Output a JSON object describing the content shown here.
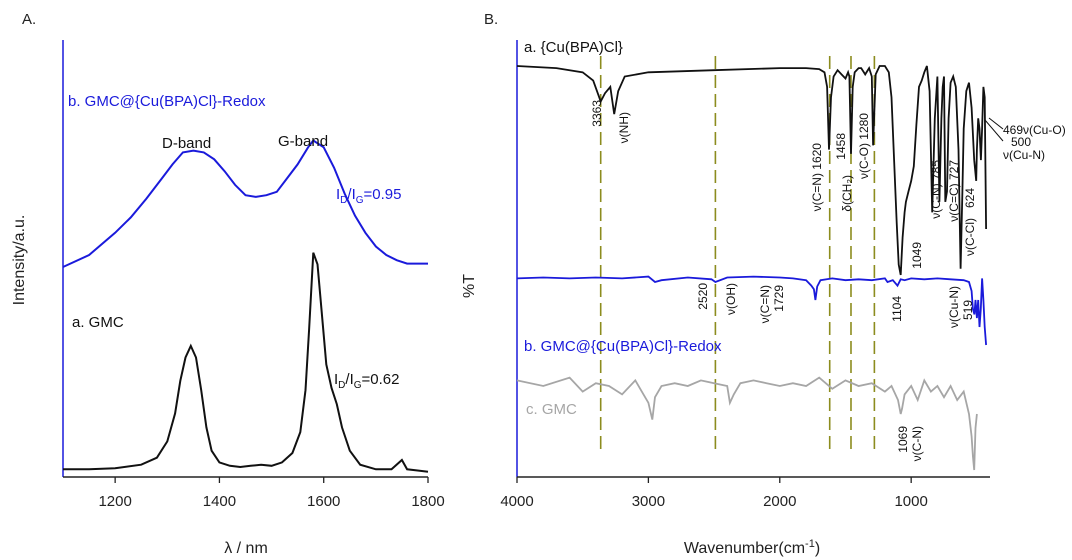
{
  "colors": {
    "black": "#111111",
    "blue": "#1a1adb",
    "gray": "#a6a6a6",
    "guide": "#8c8c1e"
  },
  "chart_data": [
    {
      "type": "line",
      "panel_label": "A.",
      "xlabel": "λ / nm",
      "ylabel": "Intensity/a.u.",
      "xlim": [
        1100,
        1800
      ],
      "xticks": [
        "1200",
        "1400",
        "1600",
        "1800"
      ],
      "ratio_b": {
        "prefix": "I",
        "sub1": "D",
        "mid": "/I",
        "sub2": "G",
        "value": "=0.95"
      },
      "ratio_a": {
        "prefix": "I",
        "sub1": "D",
        "mid": "/I",
        "sub2": "G",
        "value": "=0.62"
      },
      "band_labels": [
        "D-band",
        "G-band"
      ],
      "series": [
        {
          "name": "a. GMC",
          "color": "#111111",
          "x": [
            1100,
            1150,
            1200,
            1250,
            1280,
            1300,
            1315,
            1325,
            1335,
            1345,
            1355,
            1365,
            1375,
            1385,
            1400,
            1420,
            1440,
            1460,
            1480,
            1500,
            1520,
            1540,
            1555,
            1565,
            1572,
            1580,
            1588,
            1596,
            1605,
            1615,
            1625,
            1635,
            1650,
            1670,
            1700,
            1730,
            1750,
            1760,
            1780,
            1800
          ],
          "y": [
            0.02,
            0.02,
            0.025,
            0.04,
            0.07,
            0.14,
            0.26,
            0.4,
            0.5,
            0.55,
            0.5,
            0.36,
            0.2,
            0.1,
            0.05,
            0.035,
            0.03,
            0.035,
            0.04,
            0.035,
            0.05,
            0.09,
            0.18,
            0.36,
            0.62,
            0.95,
            0.9,
            0.7,
            0.47,
            0.37,
            0.3,
            0.2,
            0.1,
            0.04,
            0.02,
            0.02,
            0.06,
            0.02,
            0.015,
            0.01
          ]
        },
        {
          "name": "b. GMC@{Cu(BPA)Cl}-Redox",
          "color": "#1a1adb",
          "x": [
            1100,
            1150,
            1200,
            1230,
            1260,
            1290,
            1310,
            1330,
            1350,
            1370,
            1390,
            1410,
            1430,
            1450,
            1470,
            1490,
            1510,
            1530,
            1550,
            1570,
            1580,
            1590,
            1600,
            1620,
            1640,
            1660,
            1680,
            1700,
            1720,
            1740,
            1760,
            1800
          ],
          "y": [
            0.0,
            0.07,
            0.2,
            0.29,
            0.4,
            0.52,
            0.6,
            0.67,
            0.68,
            0.67,
            0.63,
            0.56,
            0.48,
            0.42,
            0.41,
            0.42,
            0.44,
            0.52,
            0.6,
            0.7,
            0.74,
            0.72,
            0.7,
            0.58,
            0.43,
            0.3,
            0.2,
            0.12,
            0.07,
            0.04,
            0.02,
            0.02
          ]
        }
      ]
    },
    {
      "type": "line",
      "panel_label": "B.",
      "xlabel": "Wavenumber(cm",
      "xlabel_sup": "-1",
      "xlabel_close": ")",
      "ylabel": "%T",
      "xlim": [
        4000,
        400
      ],
      "xticks": [
        "4000",
        "3000",
        "2000",
        "1000"
      ],
      "guide_lines_x": [
        3363,
        2490,
        1620,
        1458,
        1280
      ],
      "annotations": [
        "3363",
        "ν(NH)",
        "ν(C=N) 1620",
        "1458",
        "δ(CH₂)",
        "ν(C-O) 1280",
        "1104",
        "1049",
        "ν(C-N) 785",
        "ν(C=C) 727",
        "624",
        "ν(C-Cl)",
        "469ν(Cu-O)",
        "500",
        "ν(Cu-N)",
        "2520",
        "ν(OH)",
        "ν(C=N)",
        "1729",
        "ν(Cu-N)",
        "519",
        "1069",
        "ν(C-N)"
      ],
      "series": [
        {
          "name": "a. {Cu(BPA)Cl}",
          "color": "#111111",
          "x": [
            4000,
            3700,
            3500,
            3420,
            3380,
            3363,
            3330,
            3290,
            3260,
            3230,
            3180,
            3000,
            2500,
            2000,
            1800,
            1700,
            1660,
            1640,
            1625,
            1610,
            1590,
            1560,
            1530,
            1500,
            1480,
            1470,
            1458,
            1445,
            1430,
            1400,
            1380,
            1350,
            1320,
            1300,
            1290,
            1270,
            1240,
            1200,
            1170,
            1150,
            1130,
            1110,
            1095,
            1080,
            1065,
            1050,
            1040,
            1020,
            1000,
            980,
            960,
            940,
            920,
            900,
            880,
            860,
            840,
            820,
            800,
            785,
            770,
            760,
            750,
            740,
            727,
            715,
            700,
            680,
            660,
            640,
            624,
            610,
            600,
            580,
            560,
            540,
            520,
            505,
            500,
            490,
            480,
            469,
            460,
            450,
            440,
            430
          ],
          "y": [
            1.0,
            0.99,
            0.97,
            0.93,
            0.86,
            0.83,
            0.87,
            0.9,
            0.77,
            0.88,
            0.95,
            0.97,
            0.98,
            0.99,
            0.99,
            0.985,
            0.97,
            0.9,
            0.6,
            0.85,
            0.95,
            0.98,
            0.96,
            0.94,
            0.97,
            0.95,
            0.58,
            0.9,
            0.97,
            0.99,
            0.99,
            0.96,
            0.99,
            0.95,
            0.62,
            0.96,
            1.0,
            1.0,
            0.97,
            0.85,
            0.55,
            0.25,
            0.05,
            0.0,
            0.18,
            0.3,
            0.35,
            0.4,
            0.45,
            0.52,
            0.72,
            0.9,
            0.93,
            0.97,
            1.0,
            0.88,
            0.3,
            0.75,
            0.95,
            0.35,
            0.75,
            0.9,
            0.95,
            0.35,
            0.4,
            0.75,
            0.92,
            0.95,
            0.9,
            0.6,
            0.03,
            0.4,
            0.7,
            0.88,
            0.92,
            0.8,
            0.55,
            0.45,
            0.6,
            0.75,
            0.7,
            0.55,
            0.7,
            0.9,
            0.85,
            0.22
          ]
        },
        {
          "name": "b. GMC@{Cu(BPA)Cl}-Redox",
          "color": "#1a1adb",
          "x": [
            4000,
            3800,
            3600,
            3400,
            3200,
            3000,
            2950,
            2900,
            2700,
            2520,
            2490,
            2400,
            2200,
            2000,
            1900,
            1800,
            1760,
            1740,
            1729,
            1715,
            1690,
            1600,
            1500,
            1400,
            1300,
            1200,
            1180,
            1140,
            1104,
            1080,
            1050,
            1000,
            900,
            800,
            700,
            600,
            560,
            540,
            530,
            519,
            510,
            500,
            490,
            480,
            470,
            460,
            450,
            440,
            430
          ],
          "y": [
            0.62,
            0.625,
            0.62,
            0.625,
            0.62,
            0.63,
            0.6,
            0.61,
            0.625,
            0.615,
            0.6,
            0.625,
            0.63,
            0.625,
            0.62,
            0.61,
            0.58,
            0.56,
            0.5,
            0.575,
            0.61,
            0.62,
            0.61,
            0.615,
            0.61,
            0.62,
            0.6,
            0.61,
            0.58,
            0.615,
            0.61,
            0.62,
            0.615,
            0.62,
            0.615,
            0.61,
            0.6,
            0.55,
            0.45,
            0.42,
            0.5,
            0.4,
            0.5,
            0.35,
            0.45,
            0.62,
            0.5,
            0.35,
            0.25
          ]
        },
        {
          "name": "c. GMC",
          "color": "#a6a6a6",
          "x": [
            4000,
            3800,
            3600,
            3500,
            3400,
            3300,
            3200,
            3100,
            3050,
            3000,
            2970,
            2950,
            2900,
            2800,
            2700,
            2600,
            2500,
            2400,
            2380,
            2350,
            2300,
            2200,
            2100,
            2000,
            1900,
            1800,
            1700,
            1600,
            1500,
            1400,
            1300,
            1200,
            1150,
            1100,
            1080,
            1069,
            1050,
            1000,
            950,
            900,
            850,
            800,
            750,
            700,
            650,
            600,
            560,
            540,
            530,
            520,
            510,
            500
          ],
          "y": [
            0.32,
            0.3,
            0.33,
            0.28,
            0.31,
            0.3,
            0.27,
            0.32,
            0.28,
            0.24,
            0.18,
            0.26,
            0.3,
            0.31,
            0.3,
            0.32,
            0.31,
            0.3,
            0.24,
            0.27,
            0.31,
            0.32,
            0.31,
            0.3,
            0.31,
            0.3,
            0.33,
            0.29,
            0.32,
            0.3,
            0.31,
            0.28,
            0.3,
            0.25,
            0.2,
            0.22,
            0.27,
            0.3,
            0.25,
            0.32,
            0.28,
            0.3,
            0.26,
            0.3,
            0.25,
            0.28,
            0.2,
            0.12,
            0.05,
            0.0,
            0.15,
            0.2
          ]
        }
      ]
    }
  ]
}
